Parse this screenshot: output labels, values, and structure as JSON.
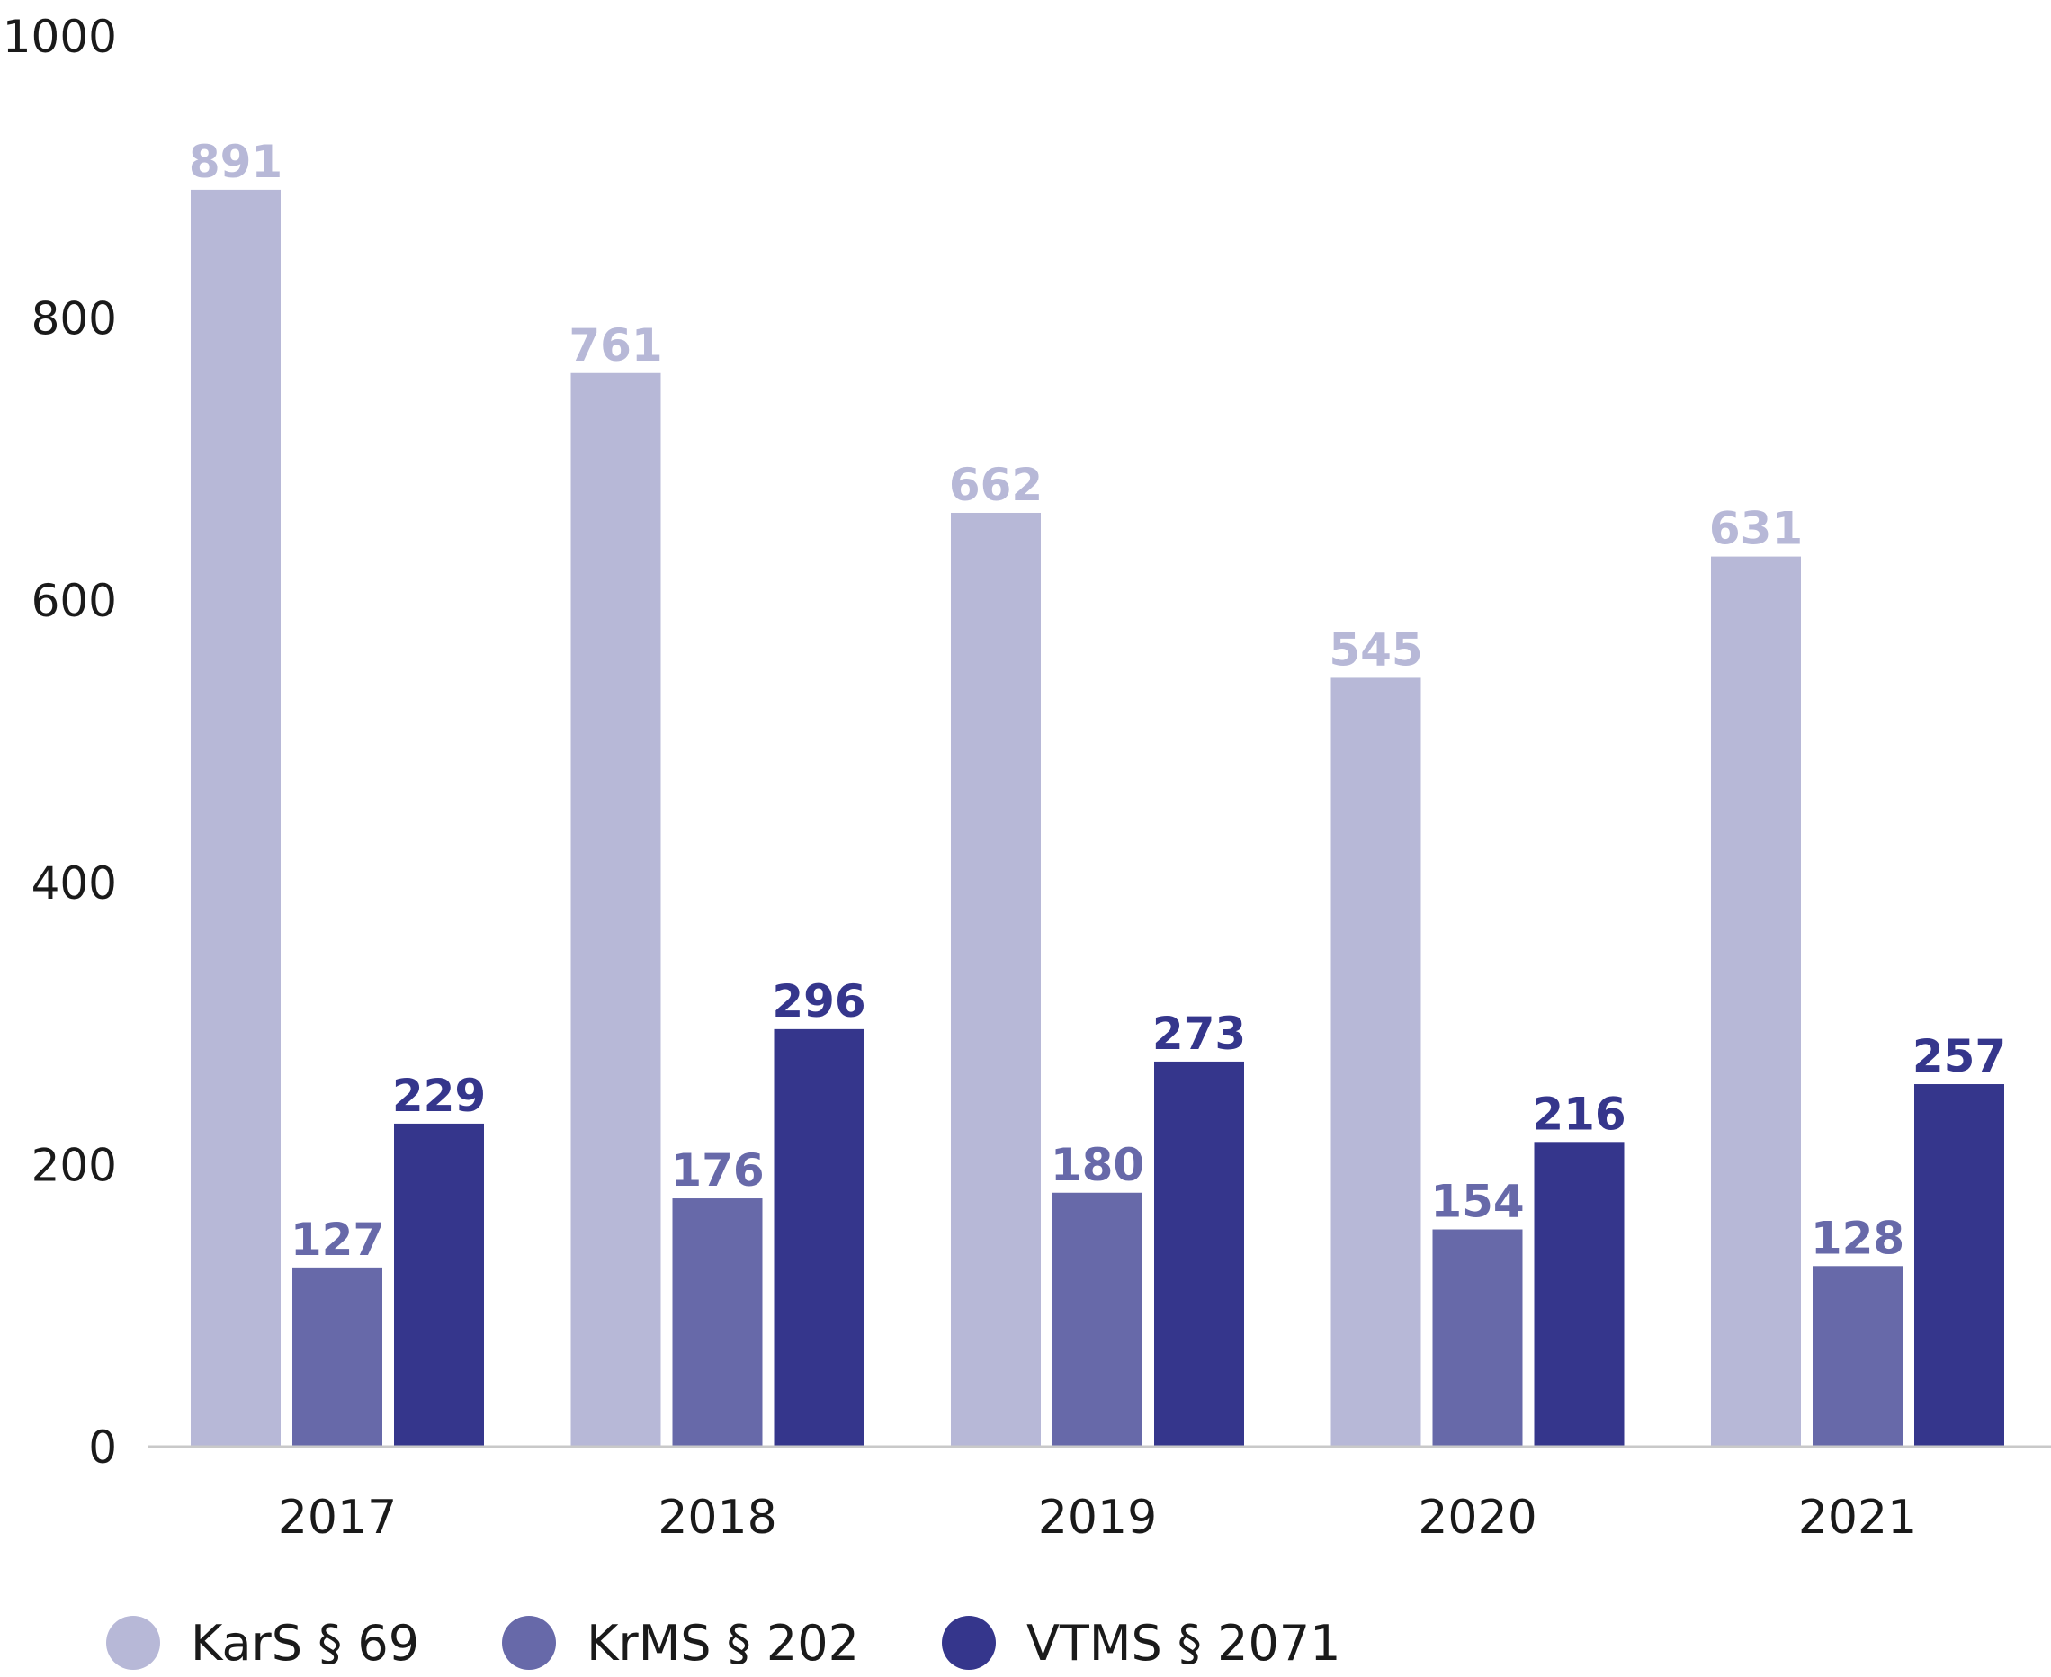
{
  "chart_data": {
    "type": "bar",
    "title": "",
    "xlabel": "",
    "ylabel": "",
    "categories": [
      "2017",
      "2018",
      "2019",
      "2020",
      "2021"
    ],
    "ylim": [
      0,
      1000
    ],
    "yticks": [
      "0",
      "200",
      "400",
      "600",
      "800",
      "1000"
    ],
    "grid": false,
    "legend_position": "bottom-left",
    "data_labels": true,
    "series": [
      {
        "name": "KarS § 69",
        "color": "#b7b8d7",
        "values": [
          891,
          761,
          662,
          545,
          631
        ]
      },
      {
        "name": "KrMS § 202",
        "color": "#6769a9",
        "values": [
          127,
          176,
          180,
          154,
          128
        ]
      },
      {
        "name": "VTMS § 2071",
        "color": "#35368c",
        "values": [
          229,
          296,
          273,
          216,
          257
        ]
      }
    ]
  }
}
